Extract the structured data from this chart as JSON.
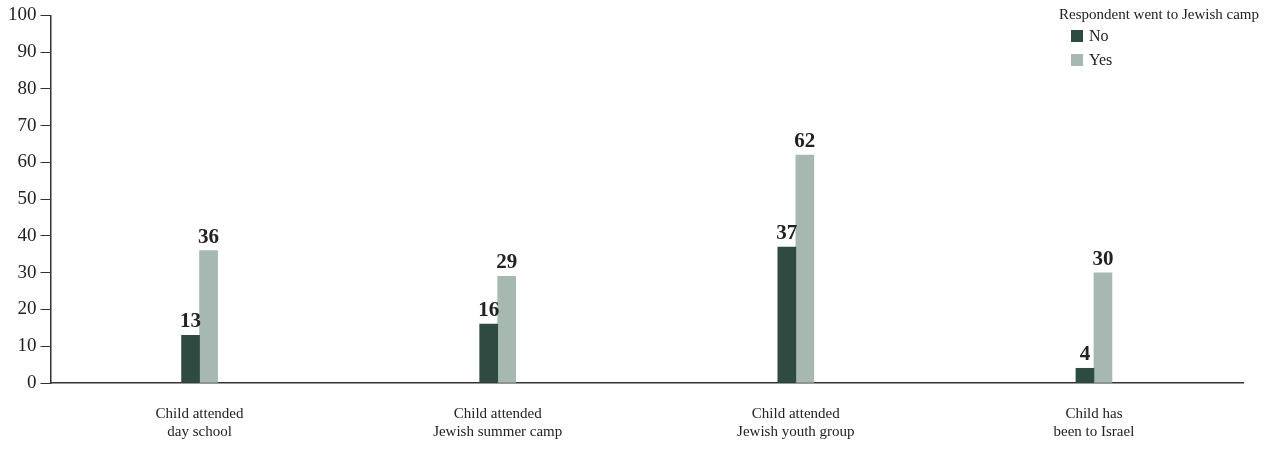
{
  "chart_data": {
    "type": "bar",
    "categories": [
      "Child attended\nday school",
      "Child attended\nJewish summer camp",
      "Child attended\nJewish youth group",
      "Child has\nbeen to Israel"
    ],
    "series": [
      {
        "name": "No",
        "color": "#2f4a40",
        "values": [
          13,
          16,
          37,
          4
        ]
      },
      {
        "name": "Yes",
        "color": "#a6b8b0",
        "values": [
          36,
          29,
          62,
          30
        ]
      }
    ],
    "legend_title": "Respondent went to Jewish camp",
    "legend": "top right",
    "data_labels": true,
    "grid": false,
    "ylim": [
      0,
      100
    ],
    "yticks": [
      0,
      10,
      20,
      30,
      40,
      50,
      60,
      70,
      80,
      90,
      100
    ]
  }
}
